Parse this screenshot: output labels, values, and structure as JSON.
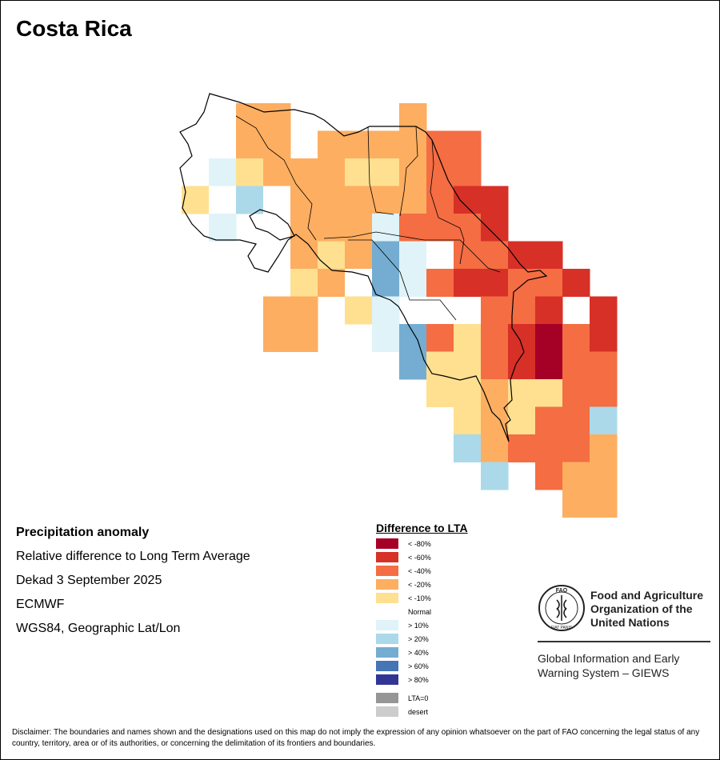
{
  "title": "Costa Rica",
  "info": {
    "heading": "Precipitation anomaly",
    "subtitle": "Relative difference to Long Term Average",
    "period": "Dekad 3 September 2025",
    "source": "ECMWF",
    "projection": "WGS84, Geographic Lat/Lon"
  },
  "legend": {
    "title": "Difference to LTA",
    "classes": [
      {
        "key": "lt80",
        "label": "< -80%",
        "color": "#a50026"
      },
      {
        "key": "lt60",
        "label": "< -60%",
        "color": "#d73027"
      },
      {
        "key": "lt40",
        "label": "< -40%",
        "color": "#f46d43"
      },
      {
        "key": "lt20",
        "label": "< -20%",
        "color": "#fdae61"
      },
      {
        "key": "lt10",
        "label": "< -10%",
        "color": "#fee090"
      },
      {
        "key": "normal",
        "label": "Normal",
        "color": "#ffffff"
      },
      {
        "key": "gt10",
        "label": "> 10%",
        "color": "#e0f3f8"
      },
      {
        "key": "gt20",
        "label": "> 20%",
        "color": "#abd9e9"
      },
      {
        "key": "gt40",
        "label": "> 40%",
        "color": "#74add1"
      },
      {
        "key": "gt60",
        "label": "> 60%",
        "color": "#4575b4"
      },
      {
        "key": "gt80",
        "label": "> 80%",
        "color": "#313695"
      }
    ],
    "special": [
      {
        "key": "lta0",
        "label": "LTA=0",
        "color": "#969696"
      },
      {
        "key": "desert",
        "label": "desert",
        "color": "#cccccc"
      }
    ]
  },
  "logo": {
    "org_line1": "Food and Agriculture",
    "org_line2": "Organization of the",
    "org_line3": "United Nations",
    "emblem_text": "FAO",
    "motto": "FIAT PANIS",
    "system_line1": "Global Information and Early",
    "system_line2": "Warning System – GIEWS"
  },
  "disclaimer": "Disclaimer: The boundaries and names shown and the designations used on this map do not imply the expression of any opinion whatsoever on the part of FAO concerning the legal status of any country, territory, area or of its authorities, or concerning the delimitation of its frontiers and boundaries.",
  "grid": {
    "colors": {
      "a": "#a50026",
      "b": "#d73027",
      "c": "#f46d43",
      "d": "#fdae61",
      "e": "#fee090",
      "w": "#ffffff",
      "f": "#e0f3f8",
      "g": "#abd9e9",
      "h": "#74add1"
    },
    "rows": [
      "..dd....d........",
      "..dd.ddddcc......",
      ".fedddeedcc......",
      "ewgwdddddcbb.....",
      ".f..dddfcccb.....",
      "....dedhfwccbb...",
      "....edwhfcbbccb..",
      "...dd.ef...ccb.b.",
      "...dd..fhcecbacb.",
      "........heecbacc.",
      ".........eedeecc.",
      "..........edeccg.",
      "..........gdcccd.",
      "...........g.cdd.",
      "..............dd."
    ]
  }
}
